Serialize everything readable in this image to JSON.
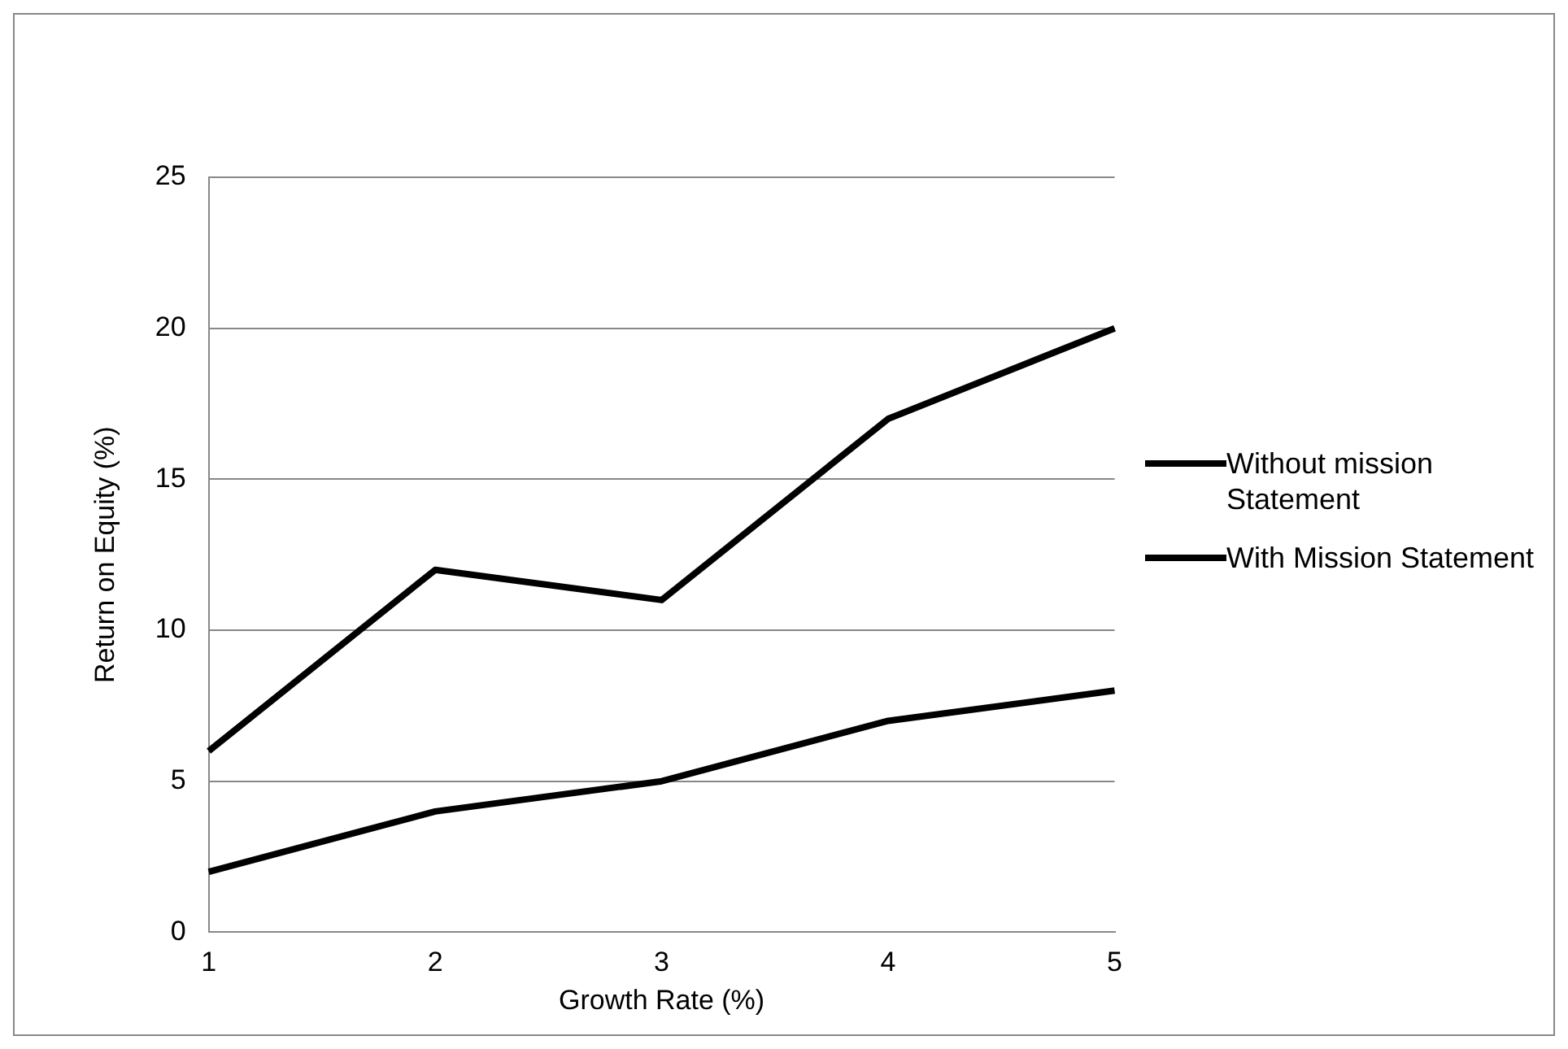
{
  "chart_data": {
    "type": "line",
    "xlabel": "Growth Rate (%)",
    "ylabel": "Return on Equity (%)",
    "categories": [
      "1",
      "2",
      "3",
      "4",
      "5"
    ],
    "series": [
      {
        "name": "Without mission Statement",
        "color": "#000000",
        "values": [
          6,
          12,
          11,
          17,
          20
        ]
      },
      {
        "name": "With Mission Statement",
        "color": "#000000",
        "values": [
          2,
          4,
          5,
          7,
          8
        ]
      }
    ],
    "ylim": [
      0,
      25
    ],
    "yticks": [
      0,
      5,
      10,
      15,
      20,
      25
    ],
    "grid": "y",
    "legend": "right",
    "marker": "none",
    "line_style": "solid"
  }
}
